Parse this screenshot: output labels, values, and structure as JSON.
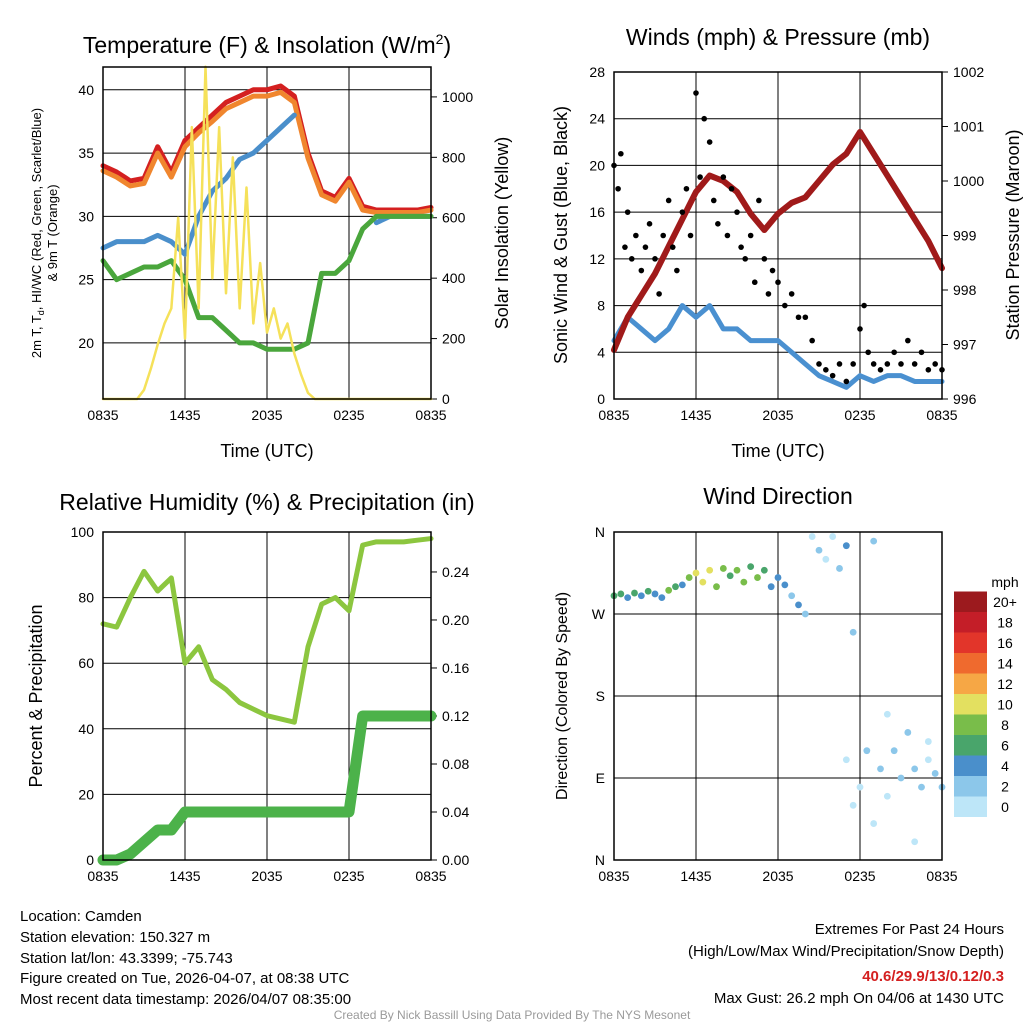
{
  "chart_data": [
    {
      "type": "line",
      "id": "temp",
      "title_main": "Temperature (F) & Insolation (W/m",
      "title_sup": "2",
      "title_end": ")",
      "ylabel_line1_a": "2m T, T",
      "ylabel_line1_sub": "d",
      "ylabel_line1_b": ", HI/WC (Red, Green, Scarlet/Blue)",
      "ylabel_line2": "& 9m T (Orange)",
      "ylabel_right": "Solar Insolation (Yellow)",
      "xlabel": "Time (UTC)",
      "xticks": [
        "0835",
        "1435",
        "2035",
        "0235",
        "0835"
      ],
      "yticks": [
        "20",
        "25",
        "30",
        "35",
        "40"
      ],
      "yticks_right": [
        "0",
        "200",
        "400",
        "600",
        "800",
        "1000"
      ],
      "ylim": [
        15.57,
        41.8
      ],
      "ylim_right": [
        0,
        1099
      ],
      "x_hours_per_point": 1,
      "series": [
        {
          "name": "2m T",
          "color": "#d42020",
          "values": [
            34,
            33.5,
            32.8,
            33,
            35.5,
            33.5,
            36,
            37,
            38,
            39,
            39.5,
            40,
            40,
            40.3,
            39.5,
            35,
            32,
            31.5,
            33,
            30.8,
            30.5,
            30.5,
            30.5,
            30.5,
            30.7
          ]
        },
        {
          "name": "9m T",
          "color": "#f0862e",
          "values": [
            33.6,
            33.1,
            32.4,
            32.6,
            35,
            33.1,
            35.5,
            36.6,
            37.5,
            38.5,
            39,
            39.5,
            39.5,
            39.8,
            39,
            34.6,
            31.7,
            31.2,
            32.7,
            30.5,
            30.3,
            30.3,
            30.3,
            30.3,
            30.5
          ]
        },
        {
          "name": "HI/WC",
          "color": "#4a8fcb",
          "values": [
            27.5,
            28,
            28,
            28,
            28.5,
            28,
            27,
            30,
            32,
            33,
            34.5,
            35,
            36,
            37,
            38,
            null,
            null,
            null,
            null,
            null,
            29.5,
            30,
            30,
            30,
            30
          ]
        },
        {
          "name": "Td",
          "color": "#4aa63c",
          "values": [
            26.5,
            25,
            25.5,
            26,
            26,
            26.5,
            25,
            22,
            22,
            21,
            20,
            20,
            19.5,
            19.5,
            19.5,
            20,
            25.5,
            25.5,
            26.5,
            29,
            30,
            30,
            30,
            30,
            30
          ]
        },
        {
          "name": "Solar Insolation",
          "axis": "right",
          "color": "#f5e15a",
          "x_hours_per_point": 0.5,
          "values": [
            0,
            0,
            0,
            0,
            0,
            0,
            30,
            100,
            180,
            250,
            300,
            600,
            200,
            900,
            300,
            1100,
            400,
            900,
            350,
            800,
            300,
            700,
            250,
            450,
            220,
            300,
            200,
            250,
            150,
            80,
            20,
            0,
            0,
            0,
            0,
            0,
            0,
            0,
            0,
            0,
            0,
            0,
            0,
            0,
            0,
            0,
            0,
            0,
            0
          ]
        }
      ]
    },
    {
      "type": "line",
      "id": "wind",
      "title": "Winds (mph) & Pressure (mb)",
      "ylabel": "Sonic Wind & Gust (Blue, Black)",
      "ylabel_right": "Station Pressure (Maroon)",
      "xlabel": "Time (UTC)",
      "xticks": [
        "0835",
        "1435",
        "2035",
        "0235",
        "0835"
      ],
      "yticks": [
        "0",
        "4",
        "8",
        "12",
        "16",
        "20",
        "24",
        "28"
      ],
      "yticks_right": [
        "996",
        "997",
        "998",
        "999",
        "1000",
        "1001",
        "1002"
      ],
      "ylim": [
        0,
        28
      ],
      "ylim_right": [
        996,
        1002
      ],
      "series": [
        {
          "name": "Sonic Wind",
          "color": "#4a90d0",
          "values": [
            5,
            7,
            6,
            5,
            6,
            8,
            7,
            8,
            6,
            6,
            5,
            5,
            5,
            4,
            3,
            2,
            1.5,
            1,
            2,
            1.5,
            2,
            2,
            1.5,
            1.5,
            1.5
          ]
        },
        {
          "name": "Station Pressure",
          "axis": "right",
          "color": "#a01a1a",
          "values": [
            996.9,
            997.5,
            997.9,
            998.3,
            998.8,
            999.3,
            999.8,
            1000.1,
            1000.0,
            999.8,
            999.4,
            999.1,
            999.4,
            999.6,
            999.7,
            1000.0,
            1000.3,
            1000.5,
            1000.9,
            1000.5,
            1000.1,
            999.7,
            999.3,
            998.9,
            998.4
          ]
        },
        {
          "name": "Gust",
          "type": "scatter",
          "color": "#000000",
          "points": [
            [
              0,
              20
            ],
            [
              0.3,
              18
            ],
            [
              0.5,
              21
            ],
            [
              0.8,
              13
            ],
            [
              1,
              16
            ],
            [
              1.3,
              12
            ],
            [
              1.6,
              14
            ],
            [
              2,
              11
            ],
            [
              2.3,
              13
            ],
            [
              2.6,
              15
            ],
            [
              3,
              12
            ],
            [
              3.3,
              9
            ],
            [
              3.6,
              14
            ],
            [
              4,
              17
            ],
            [
              4.3,
              13
            ],
            [
              4.6,
              11
            ],
            [
              5,
              16
            ],
            [
              5.3,
              18
            ],
            [
              5.6,
              14
            ],
            [
              6,
              26.2
            ],
            [
              6.3,
              19
            ],
            [
              6.6,
              24
            ],
            [
              7,
              22
            ],
            [
              7.3,
              17
            ],
            [
              7.6,
              15
            ],
            [
              8,
              19
            ],
            [
              8.3,
              14
            ],
            [
              8.6,
              18
            ],
            [
              9,
              16
            ],
            [
              9.3,
              13
            ],
            [
              9.6,
              12
            ],
            [
              10,
              14
            ],
            [
              10.3,
              10
            ],
            [
              10.6,
              17
            ],
            [
              11,
              12
            ],
            [
              11.3,
              9
            ],
            [
              11.6,
              11
            ],
            [
              12,
              10
            ],
            [
              12.5,
              8
            ],
            [
              13,
              9
            ],
            [
              13.5,
              7
            ],
            [
              14,
              7
            ],
            [
              14.5,
              5
            ],
            [
              15,
              3
            ],
            [
              15.5,
              2.5
            ],
            [
              16,
              2
            ],
            [
              16.5,
              3
            ],
            [
              17,
              1.5
            ],
            [
              17.5,
              3
            ],
            [
              18,
              6
            ],
            [
              18.3,
              8
            ],
            [
              18.6,
              4
            ],
            [
              19,
              3
            ],
            [
              19.5,
              2.5
            ],
            [
              20,
              3
            ],
            [
              20.5,
              4
            ],
            [
              21,
              3
            ],
            [
              21.5,
              5
            ],
            [
              22,
              3
            ],
            [
              22.5,
              4
            ],
            [
              23,
              2.5
            ],
            [
              23.5,
              3
            ],
            [
              24,
              2.5
            ]
          ]
        }
      ]
    },
    {
      "type": "line",
      "id": "rh",
      "title": "Relative Humidity (%) & Precipitation (in)",
      "ylabel": "Percent & Precipitation",
      "xticks": [
        "0835",
        "1435",
        "2035",
        "0235",
        "0835"
      ],
      "yticks": [
        "0",
        "20",
        "40",
        "60",
        "80",
        "100"
      ],
      "yticks_right": [
        "0.00",
        "0.04",
        "0.08",
        "0.12",
        "0.16",
        "0.20",
        "0.24"
      ],
      "ylim": [
        0,
        100
      ],
      "ylim_right": [
        0,
        0.2733
      ],
      "series": [
        {
          "name": "Relative Humidity",
          "color": "#8cc63f",
          "values": [
            72,
            71,
            80,
            88,
            82,
            86,
            60,
            65,
            55,
            52,
            48,
            46,
            44,
            43,
            42,
            65,
            78,
            80,
            76,
            96,
            97,
            97,
            97,
            97.5,
            98
          ]
        },
        {
          "name": "Precipitation",
          "axis": "right",
          "color": "#4cb24a",
          "values": [
            0,
            0,
            0.005,
            0.015,
            0.025,
            0.025,
            0.04,
            0.04,
            0.04,
            0.04,
            0.04,
            0.04,
            0.04,
            0.04,
            0.04,
            0.04,
            0.04,
            0.04,
            0.04,
            0.12,
            0.12,
            0.12,
            0.12,
            0.12,
            0.12
          ]
        }
      ]
    },
    {
      "type": "scatter",
      "id": "wdir",
      "title": "Wind Direction",
      "ylabel": "Direction (Colored By Speed)",
      "xticks": [
        "0835",
        "1435",
        "2035",
        "0235",
        "0835"
      ],
      "yticks": [
        "N",
        "E",
        "S",
        "W",
        "N"
      ],
      "ylim": [
        0,
        360
      ],
      "colorbar": {
        "title": "mph",
        "labels": [
          "0",
          "2",
          "4",
          "6",
          "8",
          "10",
          "12",
          "14",
          "16",
          "18",
          "20+"
        ],
        "colors": [
          "#bde6f8",
          "#8cc7ea",
          "#4a8fcb",
          "#49a56b",
          "#79bd4a",
          "#e3e060",
          "#f6a745",
          "#ef6a2e",
          "#e2352a",
          "#c41e28",
          "#9c1a1e"
        ]
      },
      "points_hour_deg_mph": [
        [
          0,
          290,
          6
        ],
        [
          0.5,
          292,
          6
        ],
        [
          1,
          288,
          4
        ],
        [
          1.5,
          293,
          6
        ],
        [
          2,
          290,
          4
        ],
        [
          2.5,
          295,
          6
        ],
        [
          3,
          292,
          5
        ],
        [
          3.5,
          288,
          4
        ],
        [
          4,
          296,
          8
        ],
        [
          4.5,
          300,
          6
        ],
        [
          5,
          302,
          5
        ],
        [
          5.5,
          310,
          8
        ],
        [
          6,
          315,
          10
        ],
        [
          6.5,
          305,
          10
        ],
        [
          7,
          318,
          10
        ],
        [
          7.5,
          300,
          8
        ],
        [
          8,
          320,
          8
        ],
        [
          8.5,
          312,
          6
        ],
        [
          9,
          318,
          8
        ],
        [
          9.5,
          305,
          9
        ],
        [
          10,
          322,
          7
        ],
        [
          10.5,
          310,
          8
        ],
        [
          11,
          318,
          7
        ],
        [
          11.5,
          300,
          5
        ],
        [
          12,
          310,
          4
        ],
        [
          12.5,
          302,
          4
        ],
        [
          13,
          290,
          3
        ],
        [
          13.5,
          280,
          4
        ],
        [
          14,
          270,
          2
        ],
        [
          14.5,
          355,
          1
        ],
        [
          15,
          340,
          2
        ],
        [
          15.5,
          330,
          1
        ],
        [
          16,
          355,
          0
        ],
        [
          16.5,
          320,
          2
        ],
        [
          17,
          345,
          4
        ],
        [
          17.5,
          250,
          2
        ],
        [
          17,
          110,
          1
        ],
        [
          17.5,
          60,
          1
        ],
        [
          18,
          80,
          1
        ],
        [
          18.5,
          120,
          2
        ],
        [
          19,
          350,
          3
        ],
        [
          19.5,
          100,
          2
        ],
        [
          20,
          70,
          1
        ],
        [
          20.5,
          120,
          3
        ],
        [
          21,
          90,
          3
        ],
        [
          21.5,
          140,
          2
        ],
        [
          22,
          100,
          2
        ],
        [
          22.5,
          80,
          2
        ],
        [
          23,
          110,
          1
        ],
        [
          23.5,
          95,
          2
        ],
        [
          24,
          80,
          3
        ],
        [
          19,
          40,
          1
        ],
        [
          20,
          160,
          1
        ],
        [
          22,
          20,
          1
        ],
        [
          23,
          130,
          1
        ]
      ]
    }
  ],
  "info": {
    "location": "Location: Camden",
    "elevation": "Station elevation: 150.327 m",
    "latlon": "Station lat/lon: 43.3399; -75.743",
    "created": "Figure created on Tue, 2026-04-07, at 08:38 UTC",
    "timestamp": "Most recent data timestamp: 2026/04/07 08:35:00"
  },
  "extremes": {
    "title": "Extremes For Past 24 Hours",
    "subtitle": "(High/Low/Max Wind/Precipitation/Snow Depth)",
    "values": "40.6/29.9/13/0.12/0.3",
    "values_color": "#d42020",
    "max_gust": "Max Gust: 26.2 mph On 04/06 at 1430 UTC"
  },
  "credit": "Created By Nick Bassill Using Data Provided By The NYS Mesonet"
}
